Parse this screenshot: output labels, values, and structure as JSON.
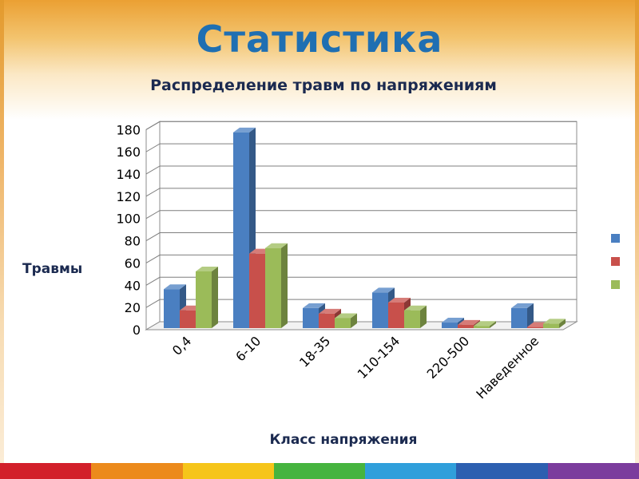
{
  "slide": {
    "title": "Статистика"
  },
  "chart_data": {
    "type": "bar",
    "title": "Распределение травм по напряжениям",
    "xlabel": "Класс напряжения",
    "ylabel": "Травмы",
    "categories": [
      "0,4",
      "6-10",
      "18-35",
      "110-154",
      "220-500",
      "Наведенное"
    ],
    "series": [
      {
        "values": [
          35,
          176,
          18,
          32,
          5,
          18
        ],
        "color": "#4a7fc1"
      },
      {
        "values": [
          16,
          67,
          13,
          23,
          3,
          1
        ],
        "color": "#c8504b"
      },
      {
        "values": [
          51,
          72,
          9,
          16,
          2,
          4
        ],
        "color": "#9bbb59"
      }
    ],
    "ylim": [
      0,
      180
    ],
    "yticks": [
      0,
      20,
      40,
      60,
      80,
      100,
      120,
      140,
      160,
      180
    ],
    "grid": true,
    "legend": "right"
  },
  "colors": {
    "title": "#1f6fb2",
    "text": "#1b2a50",
    "stripe": [
      "#d21f2a",
      "#ec8a1c",
      "#f6c51a",
      "#46b43f",
      "#2f9fdb",
      "#2c5fb0",
      "#7b3c9d"
    ]
  }
}
